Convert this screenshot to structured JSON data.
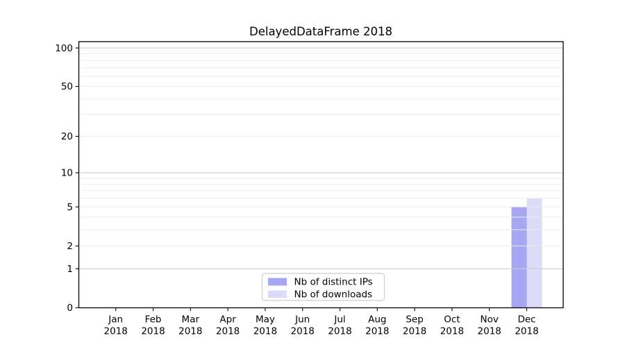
{
  "chart_data": {
    "type": "bar",
    "title": "DelayedDataFrame 2018",
    "categories": [
      "Jan 2018",
      "Feb 2018",
      "Mar 2018",
      "Apr 2018",
      "May 2018",
      "Jun 2018",
      "Jul 2018",
      "Aug 2018",
      "Sep 2018",
      "Oct 2018",
      "Nov 2018",
      "Dec 2018"
    ],
    "series": [
      {
        "name": "Nb of distinct IPs",
        "color": "#a6a6f2",
        "values": [
          0,
          0,
          0,
          0,
          0,
          0,
          0,
          0,
          0,
          0,
          0,
          5
        ]
      },
      {
        "name": "Nb of downloads",
        "color": "#dcdcf9",
        "values": [
          0,
          0,
          0,
          0,
          0,
          0,
          0,
          0,
          0,
          0,
          0,
          6
        ]
      }
    ],
    "xlabel": "",
    "ylabel": "",
    "yscale": "log1p",
    "ylim": [
      0,
      115
    ],
    "ytick_values": [
      0,
      1,
      2,
      5,
      10,
      20,
      50,
      100
    ],
    "ytick_labels": [
      "0",
      "1",
      "2",
      "5",
      "10",
      "20",
      "50",
      "100"
    ],
    "grid": true,
    "minor_gridline_values": [
      2,
      3,
      4,
      5,
      6,
      7,
      8,
      9,
      20,
      30,
      40,
      50,
      60,
      70,
      80,
      90
    ],
    "major_gridline_values": [
      1,
      10,
      100
    ],
    "legend_position": "lower center",
    "style": {
      "minor_grid_color": "#ededed",
      "major_grid_color": "#cccccc",
      "spine_color": "#000000",
      "legend_border_color": "#cccccc",
      "legend_bg_color": "#ffffff",
      "text_color": "#000000"
    }
  }
}
